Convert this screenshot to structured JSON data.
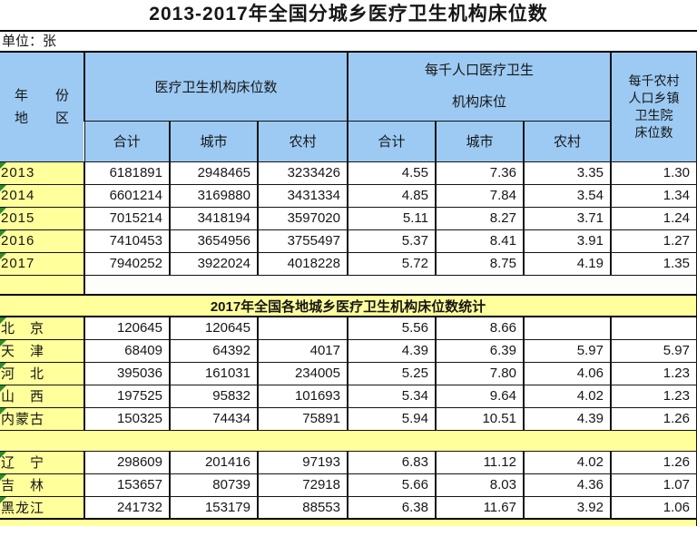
{
  "title": "2013-2017年全国分城乡医疗卫生机构床位数",
  "unit_label": "单位：张",
  "colors": {
    "blue": "#9CCAF3",
    "yellow": "#FFFF9C",
    "green": "#2E8B2E",
    "border": "#141414",
    "text": "#161616"
  },
  "table": {
    "header": {
      "corner_line1": "年　　份",
      "corner_line2": "地　　区",
      "group_beds": "医疗卫生机构床位数",
      "group_per1000_line1": "每千人口医疗卫生",
      "group_per1000_line2": "机构床位",
      "last_line1": "每千农村",
      "last_line2": "人口乡镇",
      "last_line3": "卫生院",
      "last_line4": "床位数",
      "sub": [
        "合计",
        "城市",
        "农村",
        "合计",
        "城市",
        "农村"
      ]
    },
    "year_rows": [
      {
        "label": "2013",
        "cells": [
          "6181891",
          "2948465",
          "3233426",
          "4.55",
          "7.36",
          "3.35",
          "1.30"
        ]
      },
      {
        "label": "2014",
        "cells": [
          "6601214",
          "3169880",
          "3431334",
          "4.85",
          "7.84",
          "3.54",
          "1.34"
        ]
      },
      {
        "label": "2015",
        "cells": [
          "7015214",
          "3418194",
          "3597020",
          "5.11",
          "8.27",
          "3.71",
          "1.24"
        ]
      },
      {
        "label": "2016",
        "cells": [
          "7410453",
          "3654956",
          "3755497",
          "5.37",
          "8.41",
          "3.91",
          "1.27"
        ]
      },
      {
        "label": "2017",
        "cells": [
          "7940252",
          "3922024",
          "4018228",
          "5.72",
          "8.75",
          "4.19",
          "1.35"
        ]
      }
    ],
    "section_banner": "2017年全国各地城乡医疗卫生机构床位数统计",
    "province_rows_1": [
      {
        "label": "北　京",
        "cells": [
          "120645",
          "120645",
          "",
          "5.56",
          "8.66",
          "",
          ""
        ]
      },
      {
        "label": "天　津",
        "cells": [
          "68409",
          "64392",
          "4017",
          "4.39",
          "6.39",
          "5.97",
          "5.97"
        ]
      },
      {
        "label": "河　北",
        "cells": [
          "395036",
          "161031",
          "234005",
          "5.25",
          "7.80",
          "4.06",
          "1.23"
        ]
      },
      {
        "label": "山　西",
        "cells": [
          "197525",
          "95832",
          "101693",
          "5.34",
          "9.64",
          "4.02",
          "1.23"
        ]
      },
      {
        "label": "内蒙古",
        "cells": [
          "150325",
          "74434",
          "75891",
          "5.94",
          "10.51",
          "4.39",
          "1.26"
        ]
      }
    ],
    "province_rows_2": [
      {
        "label": "辽　宁",
        "cells": [
          "298609",
          "201416",
          "97193",
          "6.83",
          "11.12",
          "4.02",
          "1.26"
        ]
      },
      {
        "label": "吉　林",
        "cells": [
          "153657",
          "80739",
          "72918",
          "5.66",
          "8.03",
          "4.36",
          "1.07"
        ]
      },
      {
        "label": "黑龙江",
        "cells": [
          "241732",
          "153179",
          "88553",
          "6.38",
          "11.67",
          "3.92",
          "1.06"
        ]
      }
    ]
  }
}
